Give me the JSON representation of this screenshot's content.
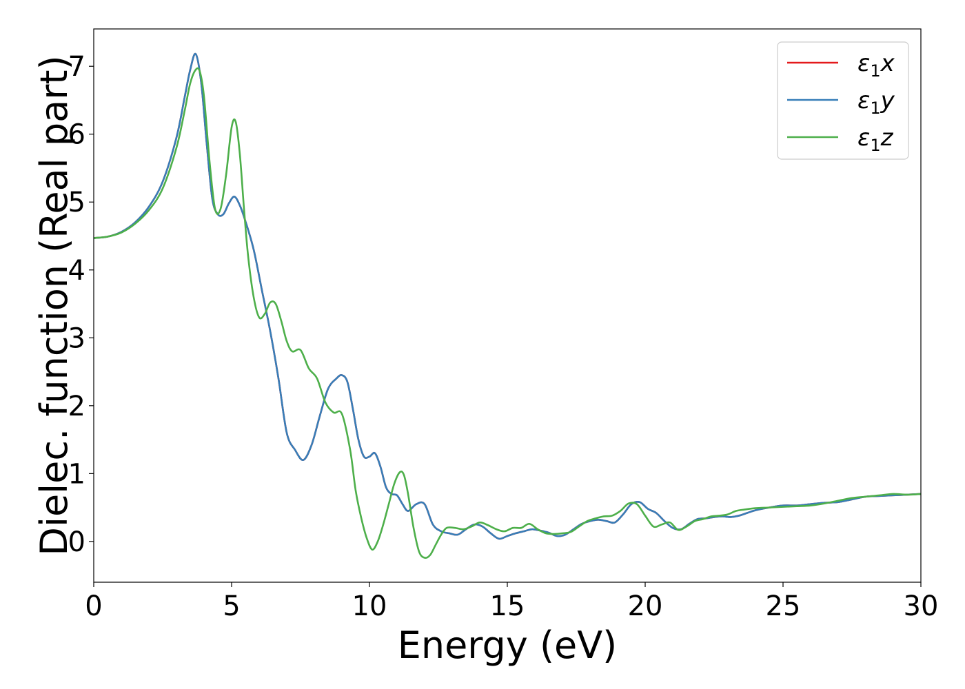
{
  "chart_data": {
    "type": "line",
    "xlabel": "Energy (eV)",
    "ylabel": "Dielec. function (Real part)",
    "xlim": [
      0,
      30
    ],
    "ylim": [
      -0.6,
      7.55
    ],
    "xticks": [
      0,
      5,
      10,
      15,
      20,
      25,
      30
    ],
    "yticks": [
      0,
      1,
      2,
      3,
      4,
      5,
      6,
      7
    ],
    "grid": false,
    "legend_position": "top-right",
    "series": [
      {
        "name": "ε1x",
        "legend": {
          "base": "ε",
          "sub": "1",
          "tail": "x"
        },
        "color": "#e41a1c",
        "x": [
          0,
          0.5,
          1,
          1.5,
          2,
          2.5,
          3,
          3.3,
          3.5,
          3.7,
          3.9,
          4.1,
          4.3,
          4.5,
          4.7,
          4.9,
          5.1,
          5.3,
          5.5,
          5.8,
          6.1,
          6.4,
          6.7,
          7.0,
          7.3,
          7.6,
          7.9,
          8.2,
          8.5,
          8.8,
          9.0,
          9.2,
          9.4,
          9.6,
          9.8,
          10.0,
          10.2,
          10.4,
          10.6,
          10.8,
          11.0,
          11.2,
          11.4,
          11.7,
          12.0,
          12.3,
          12.6,
          12.9,
          13.2,
          13.5,
          13.8,
          14.1,
          14.4,
          14.7,
          15.0,
          15.3,
          15.6,
          15.9,
          16.2,
          16.5,
          16.8,
          17.1,
          17.4,
          17.7,
          18.0,
          18.3,
          18.6,
          18.9,
          19.2,
          19.5,
          19.8,
          20.1,
          20.4,
          20.7,
          21.0,
          21.3,
          21.6,
          21.9,
          22.2,
          22.5,
          22.8,
          23.1,
          23.4,
          23.7,
          24.0,
          24.5,
          25.0,
          25.5,
          26.0,
          26.5,
          27.0,
          27.5,
          28.0,
          28.5,
          29.0,
          29.5,
          30.0
        ],
        "y": [
          4.47,
          4.49,
          4.56,
          4.7,
          4.93,
          5.3,
          5.95,
          6.55,
          6.95,
          7.18,
          6.75,
          5.85,
          5.05,
          4.82,
          4.82,
          4.98,
          5.08,
          4.95,
          4.72,
          4.3,
          3.7,
          3.1,
          2.4,
          1.6,
          1.35,
          1.2,
          1.42,
          1.85,
          2.25,
          2.4,
          2.45,
          2.35,
          1.95,
          1.5,
          1.25,
          1.25,
          1.3,
          1.1,
          0.8,
          0.7,
          0.68,
          0.55,
          0.45,
          0.55,
          0.55,
          0.25,
          0.15,
          0.12,
          0.1,
          0.18,
          0.25,
          0.22,
          0.12,
          0.04,
          0.08,
          0.12,
          0.15,
          0.18,
          0.16,
          0.13,
          0.08,
          0.1,
          0.18,
          0.26,
          0.3,
          0.32,
          0.3,
          0.28,
          0.4,
          0.55,
          0.58,
          0.48,
          0.42,
          0.3,
          0.2,
          0.18,
          0.26,
          0.33,
          0.34,
          0.36,
          0.37,
          0.36,
          0.38,
          0.42,
          0.46,
          0.5,
          0.53,
          0.53,
          0.55,
          0.57,
          0.58,
          0.62,
          0.66,
          0.67,
          0.68,
          0.69,
          0.7
        ]
      },
      {
        "name": "ε1y",
        "legend": {
          "base": "ε",
          "sub": "1",
          "tail": "y"
        },
        "color": "#377eb8",
        "x": [
          0,
          0.5,
          1,
          1.5,
          2,
          2.5,
          3,
          3.3,
          3.5,
          3.7,
          3.9,
          4.1,
          4.3,
          4.5,
          4.7,
          4.9,
          5.1,
          5.3,
          5.5,
          5.8,
          6.1,
          6.4,
          6.7,
          7.0,
          7.3,
          7.6,
          7.9,
          8.2,
          8.5,
          8.8,
          9.0,
          9.2,
          9.4,
          9.6,
          9.8,
          10.0,
          10.2,
          10.4,
          10.6,
          10.8,
          11.0,
          11.2,
          11.4,
          11.7,
          12.0,
          12.3,
          12.6,
          12.9,
          13.2,
          13.5,
          13.8,
          14.1,
          14.4,
          14.7,
          15.0,
          15.3,
          15.6,
          15.9,
          16.2,
          16.5,
          16.8,
          17.1,
          17.4,
          17.7,
          18.0,
          18.3,
          18.6,
          18.9,
          19.2,
          19.5,
          19.8,
          20.1,
          20.4,
          20.7,
          21.0,
          21.3,
          21.6,
          21.9,
          22.2,
          22.5,
          22.8,
          23.1,
          23.4,
          23.7,
          24.0,
          24.5,
          25.0,
          25.5,
          26.0,
          26.5,
          27.0,
          27.5,
          28.0,
          28.5,
          29.0,
          29.5,
          30.0
        ],
        "y": [
          4.47,
          4.49,
          4.56,
          4.7,
          4.93,
          5.3,
          5.95,
          6.55,
          6.95,
          7.18,
          6.75,
          5.85,
          5.05,
          4.82,
          4.82,
          4.98,
          5.08,
          4.95,
          4.72,
          4.3,
          3.7,
          3.1,
          2.4,
          1.6,
          1.35,
          1.2,
          1.42,
          1.85,
          2.25,
          2.4,
          2.45,
          2.35,
          1.95,
          1.5,
          1.25,
          1.25,
          1.3,
          1.1,
          0.8,
          0.7,
          0.68,
          0.55,
          0.45,
          0.55,
          0.55,
          0.25,
          0.15,
          0.12,
          0.1,
          0.18,
          0.25,
          0.22,
          0.12,
          0.04,
          0.08,
          0.12,
          0.15,
          0.18,
          0.16,
          0.13,
          0.08,
          0.1,
          0.18,
          0.26,
          0.3,
          0.32,
          0.3,
          0.28,
          0.4,
          0.55,
          0.58,
          0.48,
          0.42,
          0.3,
          0.2,
          0.18,
          0.26,
          0.33,
          0.34,
          0.36,
          0.37,
          0.36,
          0.38,
          0.42,
          0.46,
          0.5,
          0.53,
          0.53,
          0.55,
          0.57,
          0.58,
          0.62,
          0.66,
          0.67,
          0.68,
          0.69,
          0.7
        ]
      },
      {
        "name": "ε1z",
        "legend": {
          "base": "ε",
          "sub": "1",
          "tail": "z"
        },
        "color": "#4daf4a",
        "x": [
          0,
          0.5,
          1,
          1.5,
          2,
          2.5,
          3,
          3.3,
          3.5,
          3.7,
          3.85,
          4.0,
          4.2,
          4.4,
          4.6,
          4.8,
          5.0,
          5.15,
          5.3,
          5.45,
          5.6,
          5.8,
          6.0,
          6.2,
          6.4,
          6.6,
          6.8,
          7.0,
          7.2,
          7.5,
          7.8,
          8.1,
          8.4,
          8.7,
          9.0,
          9.3,
          9.5,
          9.7,
          9.9,
          10.1,
          10.3,
          10.5,
          10.7,
          10.9,
          11.1,
          11.25,
          11.4,
          11.6,
          11.8,
          12.0,
          12.2,
          12.4,
          12.6,
          12.8,
          13.1,
          13.4,
          13.7,
          14.0,
          14.3,
          14.6,
          14.9,
          15.2,
          15.5,
          15.8,
          16.1,
          16.4,
          16.7,
          17.0,
          17.3,
          17.6,
          17.9,
          18.2,
          18.5,
          18.8,
          19.1,
          19.4,
          19.7,
          20.0,
          20.3,
          20.6,
          20.9,
          21.2,
          21.5,
          21.8,
          22.1,
          22.4,
          22.7,
          23.0,
          23.3,
          23.6,
          24.0,
          24.5,
          25.0,
          25.5,
          26.0,
          26.5,
          27.0,
          27.5,
          28.0,
          28.5,
          29.0,
          29.5,
          30.0
        ],
        "y": [
          4.47,
          4.49,
          4.55,
          4.68,
          4.88,
          5.2,
          5.8,
          6.35,
          6.75,
          6.95,
          6.92,
          6.55,
          5.6,
          4.9,
          4.9,
          5.4,
          6.1,
          6.18,
          5.7,
          4.9,
          4.2,
          3.6,
          3.3,
          3.35,
          3.52,
          3.5,
          3.25,
          2.95,
          2.8,
          2.82,
          2.55,
          2.4,
          2.05,
          1.9,
          1.88,
          1.35,
          0.75,
          0.35,
          0.05,
          -0.12,
          0.0,
          0.25,
          0.55,
          0.85,
          1.02,
          0.98,
          0.7,
          0.2,
          -0.15,
          -0.24,
          -0.2,
          -0.05,
          0.1,
          0.2,
          0.2,
          0.18,
          0.22,
          0.28,
          0.24,
          0.18,
          0.15,
          0.2,
          0.2,
          0.26,
          0.18,
          0.12,
          0.11,
          0.12,
          0.14,
          0.22,
          0.3,
          0.34,
          0.37,
          0.38,
          0.45,
          0.56,
          0.55,
          0.38,
          0.22,
          0.25,
          0.28,
          0.17,
          0.22,
          0.3,
          0.33,
          0.37,
          0.38,
          0.4,
          0.45,
          0.47,
          0.49,
          0.5,
          0.51,
          0.52,
          0.53,
          0.56,
          0.6,
          0.64,
          0.66,
          0.68,
          0.7,
          0.69,
          0.7
        ]
      }
    ]
  }
}
